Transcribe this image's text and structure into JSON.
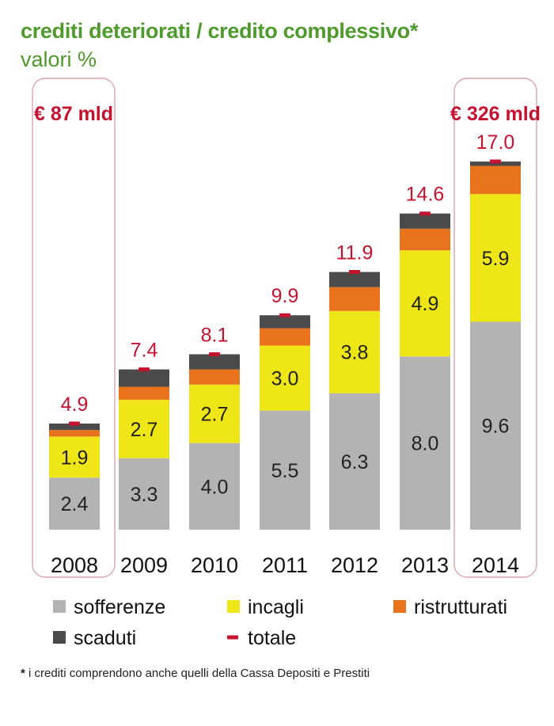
{
  "header": {
    "title": "crediti deteriorati / credito complessivo*",
    "subtitle": "valori %"
  },
  "footnote": {
    "marker": "*",
    "text": "i crediti comprendono anche quelli della Cassa Depositi e Prestiti"
  },
  "colors": {
    "sofferenze": "#b3b3b3",
    "incagli": "#eee617",
    "ristrutturati": "#e8731c",
    "scaduti": "#4a4a4a",
    "totale": "#c4122f",
    "highlight_box": "#d9a5ad",
    "title": "#4f9a2c"
  },
  "chart_data": {
    "type": "bar",
    "stacked": true,
    "title": "crediti deteriorati / credito complessivo*",
    "subtitle": "valori %",
    "xlabel": "",
    "ylabel": "",
    "categories": [
      "2008",
      "2009",
      "2010",
      "2011",
      "2012",
      "2013",
      "2014"
    ],
    "series": [
      {
        "key": "sofferenze",
        "name": "sofferenze",
        "values": [
          2.4,
          3.3,
          4.0,
          5.5,
          6.3,
          8.0,
          9.6
        ],
        "labeled": true
      },
      {
        "key": "incagli",
        "name": "incagli",
        "values": [
          1.9,
          2.7,
          2.7,
          3.0,
          3.8,
          4.9,
          5.9
        ],
        "labeled": true
      },
      {
        "key": "ristrutturati",
        "name": "ristrutturati",
        "values": [
          0.3,
          0.6,
          0.7,
          0.8,
          1.1,
          1.0,
          1.3
        ],
        "labeled": false
      },
      {
        "key": "scaduti",
        "name": "scaduti",
        "values": [
          0.3,
          0.8,
          0.7,
          0.6,
          0.7,
          0.7,
          0.2
        ],
        "labeled": false
      }
    ],
    "totals": [
      4.9,
      7.4,
      8.1,
      9.9,
      11.9,
      14.6,
      17.0
    ],
    "total_labels": [
      "4.9",
      "7.4",
      "8.1",
      "9.9",
      "11.9",
      "14.6",
      "17.0"
    ],
    "value_labels": {
      "sofferenze": [
        "2.4",
        "3.3",
        "4.0",
        "5.5",
        "6.3",
        "8.0",
        "9.6"
      ],
      "incagli": [
        "1.9",
        "2.7",
        "2.7",
        "3.0",
        "3.8",
        "4.9",
        "5.9"
      ]
    },
    "total_series_name": "totale",
    "ylim": [
      0,
      17.5
    ],
    "grid": false,
    "highlights": [
      {
        "category": "2008",
        "label": "€ 87 mld"
      },
      {
        "category": "2014",
        "label": "€ 326 mld"
      }
    ],
    "legend": {
      "placement": "bottom",
      "items": [
        {
          "key": "sofferenze",
          "label": "sofferenze",
          "marker": "square"
        },
        {
          "key": "incagli",
          "label": "incagli",
          "marker": "square"
        },
        {
          "key": "ristrutturati",
          "label": "ristrutturati",
          "marker": "square"
        },
        {
          "key": "scaduti",
          "label": "scaduti",
          "marker": "square"
        },
        {
          "key": "totale",
          "label": "totale",
          "marker": "dash"
        }
      ]
    }
  }
}
